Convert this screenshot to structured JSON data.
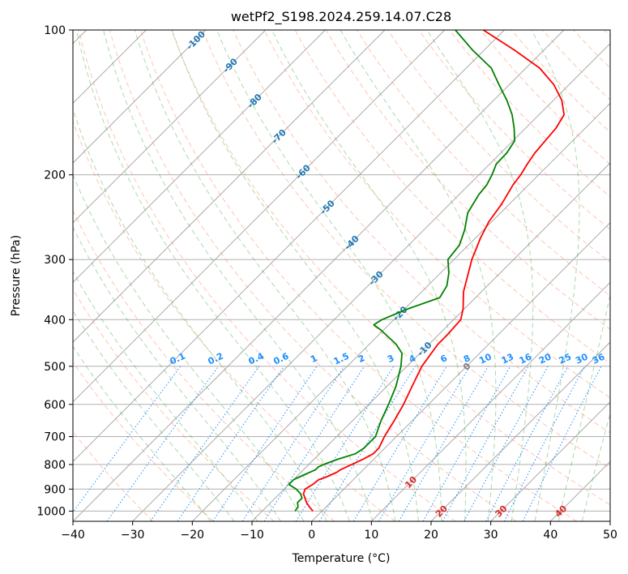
{
  "chart_data": {
    "type": "line",
    "subtype": "skew-t log-p diagram",
    "title": "wetPf2_S198.2024.259.14.07.C28",
    "xlabel": "Temperature (°C)",
    "ylabel": "Pressure (hPa)",
    "xlim": [
      -40,
      50
    ],
    "ylim_pressure": [
      1050,
      100
    ],
    "y_scale": "log",
    "grid": true,
    "x_ticks": [
      "−40",
      "−30",
      "−20",
      "−10",
      "0",
      "10",
      "20",
      "30",
      "40",
      "50"
    ],
    "y_ticks": [
      "100",
      "200",
      "300",
      "400",
      "500",
      "600",
      "700",
      "800",
      "900",
      "1000"
    ],
    "colors": {
      "temperature": "#ff0000",
      "dewpoint": "#008000",
      "isotherm": "#808080",
      "dry_adiabat": "#ff7f50",
      "moist_adiabat": "#2ca02c",
      "mixing_ratio": "#1e90ff",
      "isotherm_label": "#1f77b4",
      "warm_isotherm_label": "#d62728",
      "zero_label": "#7f7f7f"
    },
    "isotherm_labels": [
      {
        "t": -100,
        "text": "-100"
      },
      {
        "t": -90,
        "text": "-90"
      },
      {
        "t": -80,
        "text": "-80"
      },
      {
        "t": -70,
        "text": "-70"
      },
      {
        "t": -60,
        "text": "-60"
      },
      {
        "t": -50,
        "text": "-50"
      },
      {
        "t": -40,
        "text": "-40"
      },
      {
        "t": -30,
        "text": "-30"
      },
      {
        "t": -20,
        "text": "-20"
      },
      {
        "t": -10,
        "text": "-10"
      },
      {
        "t": 0,
        "text": "0"
      },
      {
        "t": 10,
        "text": "10"
      },
      {
        "t": 20,
        "text": "20"
      },
      {
        "t": 30,
        "text": "30"
      },
      {
        "t": 40,
        "text": "40"
      }
    ],
    "mixing_ratio_labels": [
      "0.1",
      "0.2",
      "0.4",
      "0.6",
      "1",
      "1.5",
      "2",
      "3",
      "4",
      "6",
      "8",
      "10",
      "13",
      "16",
      "20",
      "25",
      "30",
      "36"
    ],
    "series": [
      {
        "name": "Temperature",
        "points": [
          [
            1000,
            -1.5
          ],
          [
            980,
            -2.8
          ],
          [
            960,
            -4.0
          ],
          [
            940,
            -5.0
          ],
          [
            920,
            -6.0
          ],
          [
            900,
            -6.5
          ],
          [
            880,
            -6.0
          ],
          [
            860,
            -5.8
          ],
          [
            850,
            -5.0
          ],
          [
            840,
            -4.5
          ],
          [
            830,
            -4.0
          ],
          [
            820,
            -3.8
          ],
          [
            800,
            -2.8
          ],
          [
            780,
            -1.8
          ],
          [
            760,
            -1.0
          ],
          [
            740,
            -1.0
          ],
          [
            720,
            -1.5
          ],
          [
            700,
            -2.0
          ],
          [
            650,
            -3.0
          ],
          [
            600,
            -4.2
          ],
          [
            550,
            -5.8
          ],
          [
            500,
            -7.5
          ],
          [
            450,
            -8.5
          ],
          [
            430,
            -8.5
          ],
          [
            400,
            -8.8
          ],
          [
            380,
            -10.2
          ],
          [
            350,
            -13.0
          ],
          [
            300,
            -17.0
          ],
          [
            270,
            -19.2
          ],
          [
            250,
            -20.5
          ],
          [
            230,
            -21.3
          ],
          [
            210,
            -22.6
          ],
          [
            200,
            -23.0
          ],
          [
            190,
            -23.7
          ],
          [
            180,
            -24.3
          ],
          [
            170,
            -24.6
          ],
          [
            160,
            -24.9
          ],
          [
            150,
            -25.8
          ],
          [
            140,
            -28.6
          ],
          [
            130,
            -32.5
          ],
          [
            120,
            -37.7
          ],
          [
            110,
            -45.0
          ],
          [
            100,
            -53.5
          ]
        ]
      },
      {
        "name": "Dewpoint",
        "points": [
          [
            1000,
            -4.5
          ],
          [
            980,
            -4.7
          ],
          [
            960,
            -5.5
          ],
          [
            940,
            -5.5
          ],
          [
            920,
            -6.5
          ],
          [
            900,
            -8.0
          ],
          [
            880,
            -10.0
          ],
          [
            860,
            -10.0
          ],
          [
            850,
            -9.5
          ],
          [
            840,
            -9.0
          ],
          [
            830,
            -8.5
          ],
          [
            820,
            -8.0
          ],
          [
            810,
            -8.0
          ],
          [
            800,
            -7.5
          ],
          [
            780,
            -6.0
          ],
          [
            760,
            -4.0
          ],
          [
            740,
            -3.5
          ],
          [
            720,
            -3.5
          ],
          [
            700,
            -3.5
          ],
          [
            650,
            -5.2
          ],
          [
            600,
            -6.7
          ],
          [
            550,
            -8.5
          ],
          [
            500,
            -11.0
          ],
          [
            470,
            -13.0
          ],
          [
            450,
            -15.5
          ],
          [
            420,
            -20.5
          ],
          [
            410,
            -22.5
          ],
          [
            400,
            -22.0
          ],
          [
            380,
            -19.5
          ],
          [
            360,
            -16.0
          ],
          [
            340,
            -16.8
          ],
          [
            320,
            -18.6
          ],
          [
            300,
            -21.0
          ],
          [
            280,
            -21.5
          ],
          [
            260,
            -23.2
          ],
          [
            240,
            -25.5
          ],
          [
            220,
            -26.7
          ],
          [
            210,
            -27.0
          ],
          [
            200,
            -27.8
          ],
          [
            190,
            -28.9
          ],
          [
            180,
            -29.0
          ],
          [
            170,
            -29.7
          ],
          [
            160,
            -31.9
          ],
          [
            150,
            -34.5
          ],
          [
            140,
            -37.8
          ],
          [
            130,
            -41.7
          ],
          [
            120,
            -45.8
          ],
          [
            110,
            -52.0
          ],
          [
            100,
            -58.2
          ]
        ]
      }
    ]
  }
}
